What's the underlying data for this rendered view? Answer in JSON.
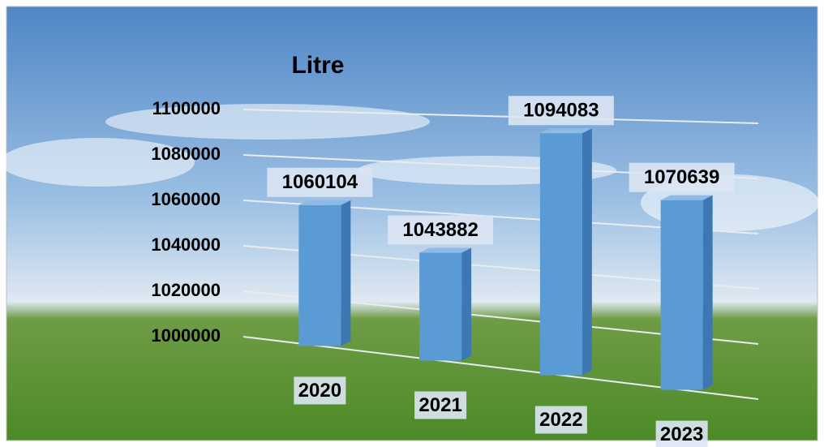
{
  "chart_data": {
    "type": "bar3d",
    "title": "Litre",
    "categories": [
      "2020",
      "2021",
      "2022",
      "2023"
    ],
    "values": [
      1060104,
      1043882,
      1094083,
      1070639
    ],
    "color": "#5b9bd5",
    "ylim": [
      1000000,
      1100000
    ],
    "yticks": [
      1000000,
      1020000,
      1040000,
      1060000,
      1080000,
      1100000
    ],
    "grid": true
  }
}
